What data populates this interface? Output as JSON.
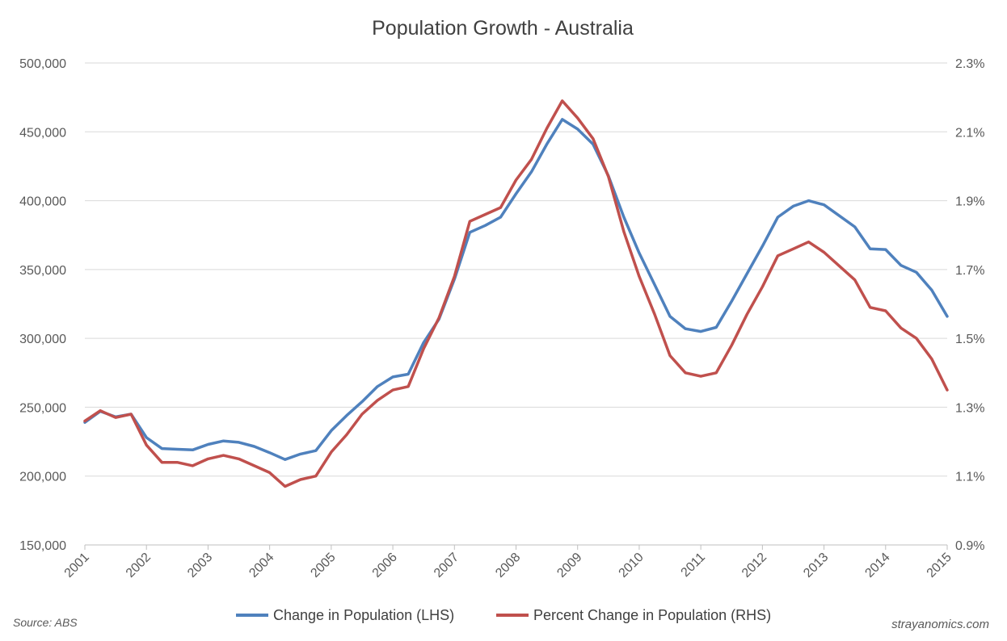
{
  "chart_data": {
    "type": "line",
    "title": "Population Growth - Australia",
    "x": [
      2001.0,
      2001.25,
      2001.5,
      2001.75,
      2002.0,
      2002.25,
      2002.5,
      2002.75,
      2003.0,
      2003.25,
      2003.5,
      2003.75,
      2004.0,
      2004.25,
      2004.5,
      2004.75,
      2005.0,
      2005.25,
      2005.5,
      2005.75,
      2006.0,
      2006.25,
      2006.5,
      2006.75,
      2007.0,
      2007.25,
      2007.5,
      2007.75,
      2008.0,
      2008.25,
      2008.5,
      2008.75,
      2009.0,
      2009.25,
      2009.5,
      2009.75,
      2010.0,
      2010.25,
      2010.5,
      2010.75,
      2011.0,
      2011.25,
      2011.5,
      2011.75,
      2012.0,
      2012.25,
      2012.5,
      2012.75,
      2013.0,
      2013.25,
      2013.5,
      2013.75,
      2014.0,
      2014.25,
      2014.5,
      2014.75,
      2015.0
    ],
    "series": [
      {
        "name": "Change in Population (LHS)",
        "axis": "left",
        "color": "#4F81BD",
        "values": [
          239000,
          247000,
          243000,
          245000,
          228000,
          220000,
          219500,
          219000,
          223000,
          225500,
          224500,
          221500,
          217000,
          212000,
          216000,
          218500,
          233000,
          244000,
          254000,
          265000,
          272000,
          274000,
          297000,
          314000,
          343000,
          377000,
          382000,
          388000,
          405000,
          421000,
          441000,
          459000,
          452000,
          441000,
          418000,
          388000,
          362000,
          339000,
          316000,
          307000,
          305000,
          308000,
          327000,
          347000,
          367000,
          388000,
          396000,
          400000,
          397000,
          389000,
          381000,
          365000,
          364500,
          353000,
          348000,
          335000,
          316000
        ]
      },
      {
        "name": "Percent Change in Population (RHS)",
        "axis": "right",
        "color": "#C0504D",
        "values": [
          1.26,
          1.29,
          1.27,
          1.28,
          1.19,
          1.14,
          1.14,
          1.13,
          1.15,
          1.16,
          1.15,
          1.13,
          1.11,
          1.07,
          1.09,
          1.1,
          1.17,
          1.22,
          1.28,
          1.32,
          1.35,
          1.36,
          1.47,
          1.56,
          1.68,
          1.84,
          1.86,
          1.88,
          1.96,
          2.02,
          2.11,
          2.19,
          2.14,
          2.08,
          1.97,
          1.81,
          1.68,
          1.57,
          1.45,
          1.4,
          1.39,
          1.4,
          1.48,
          1.57,
          1.65,
          1.74,
          1.76,
          1.78,
          1.75,
          1.71,
          1.67,
          1.59,
          1.58,
          1.53,
          1.5,
          1.44,
          1.35
        ]
      }
    ],
    "x_ticks": [
      "2001",
      "2002",
      "2003",
      "2004",
      "2005",
      "2006",
      "2007",
      "2008",
      "2009",
      "2010",
      "2011",
      "2012",
      "2013",
      "2014",
      "2015"
    ],
    "y_left": {
      "min": 150000,
      "max": 500000,
      "step": 50000,
      "ticks": [
        "150,000",
        "200,000",
        "250,000",
        "300,000",
        "350,000",
        "400,000",
        "450,000",
        "500,000"
      ]
    },
    "y_right": {
      "min": 0.9,
      "max": 2.3,
      "step": 0.2,
      "ticks": [
        "0.9%",
        "1.1%",
        "1.3%",
        "1.5%",
        "1.7%",
        "1.9%",
        "2.1%",
        "2.3%"
      ]
    },
    "grid": true,
    "legend_position": "bottom"
  },
  "footer": {
    "source": "Source: ABS",
    "credit": "strayanomics.com"
  },
  "colors": {
    "gridline": "#D9D9D9",
    "axis": "#BFBFBF"
  }
}
